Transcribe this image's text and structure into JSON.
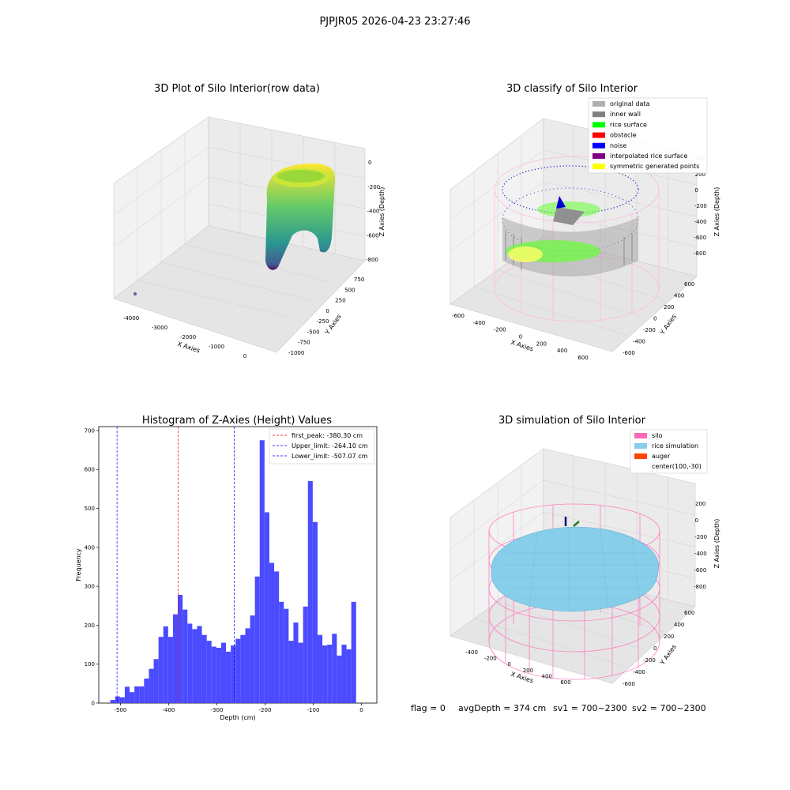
{
  "suptitle": "PJPJR05 2026-04-23 23:27:46",
  "footer": {
    "flag": "flag = 0",
    "avg": "avgDepth = 374 cm",
    "sv1": "sv1 = 700~2300",
    "sv2": "sv2 = 700~2300"
  },
  "panels": {
    "raw": {
      "title": "3D Plot of Silo Interior(row data)",
      "xlabel": "X Axies",
      "ylabel": "Y Axies",
      "zlabel": "Z Axies (Depth)",
      "xticks": [
        "-4000",
        "-3000",
        "-2000",
        "-1000",
        "0"
      ],
      "yticks": [
        "-1000",
        "-750",
        "-500",
        "-250",
        "0",
        "250",
        "500",
        "750"
      ],
      "zticks": [
        "-800",
        "-600",
        "-400",
        "-200",
        "0"
      ]
    },
    "classify": {
      "title": "3D classify of Silo Interior",
      "xlabel": "X Axies",
      "ylabel": "Y Axies",
      "zlabel": "Z Axies (Depth)",
      "xticks": [
        "-600",
        "-400",
        "-200",
        "0",
        "200",
        "400",
        "600"
      ],
      "yticks": [
        "-600",
        "-400",
        "-200",
        "0",
        "200",
        "400",
        "600"
      ],
      "zticks": [
        "-800",
        "-600",
        "-400",
        "-200",
        "0",
        "200",
        "400"
      ],
      "legend": [
        {
          "label": "original data",
          "color": "#b0b0b0"
        },
        {
          "label": "inner wall",
          "color": "#808080"
        },
        {
          "label": "rice surface",
          "color": "#00ff00"
        },
        {
          "label": "obstacle",
          "color": "#ff0000"
        },
        {
          "label": "noise",
          "color": "#0000ff"
        },
        {
          "label": "interpolated rice surface",
          "color": "#800080"
        },
        {
          "label": "symmetric generated points",
          "color": "#ffff00"
        }
      ]
    },
    "simulation": {
      "title": "3D simulation of Silo Interior",
      "xlabel": "X Axies",
      "ylabel": "Y Axies",
      "zlabel": "Z Axies (Depth)",
      "xticks": [
        "-400",
        "-200",
        "0",
        "200",
        "400",
        "600"
      ],
      "yticks": [
        "-600",
        "-400",
        "-200",
        "0",
        "200",
        "400",
        "600"
      ],
      "zticks": [
        "-800",
        "-600",
        "-400",
        "-200",
        "0",
        "200"
      ],
      "legend": [
        {
          "label": "silo",
          "color": "#ff69b4"
        },
        {
          "label": "rice simulation",
          "color": "#87ceeb"
        },
        {
          "label": "auger",
          "color": "#ff4500"
        },
        {
          "label": "center(100,-30)",
          "color": ""
        }
      ]
    }
  },
  "chart_data": [
    {
      "type": "histogram",
      "title": "Histogram of Z-Axies (Height) Values",
      "xlabel": "Depth (cm)",
      "ylabel": "Frequency",
      "xlim": [
        -545,
        32
      ],
      "ylim": [
        0,
        710
      ],
      "xticks": [
        -500,
        -400,
        -300,
        -200,
        -100,
        0
      ],
      "yticks": [
        0,
        100,
        200,
        300,
        400,
        500,
        600,
        700
      ],
      "bar_color": "#4b4bff",
      "bin_start": -521,
      "bin_width": 10,
      "values": [
        8,
        17,
        15,
        42,
        28,
        43,
        43,
        63,
        88,
        113,
        170,
        197,
        170,
        228,
        278,
        240,
        204,
        190,
        198,
        175,
        160,
        145,
        142,
        155,
        132,
        148,
        165,
        175,
        192,
        225,
        325,
        675,
        490,
        360,
        338,
        260,
        242,
        160,
        207,
        155,
        248,
        570,
        465,
        175,
        148,
        150,
        178,
        122,
        150,
        138,
        260
      ],
      "lines": [
        {
          "label": "first_peak: -380.30 cm",
          "x": -380.3,
          "color": "#ff0000"
        },
        {
          "label": "Upper_limit: -264.10 cm",
          "x": -264.1,
          "color": "#0000ff"
        },
        {
          "label": "Lower_limit: -507.07 cm",
          "x": -507.07,
          "color": "#0000ff"
        }
      ],
      "legend_position": "top-right"
    }
  ]
}
